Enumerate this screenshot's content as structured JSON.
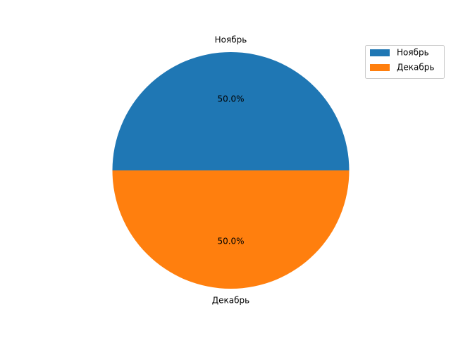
{
  "chart_data": {
    "type": "pie",
    "categories": [
      "Ноябрь",
      "Декабрь"
    ],
    "values": [
      50,
      50
    ],
    "percent_labels": [
      "50.0%",
      "50.0%"
    ],
    "colors": [
      "#1f77b4",
      "#ff7f0e"
    ],
    "start_angle_deg": 0,
    "direction": "counterclockwise",
    "legend": {
      "position": "top-right",
      "entries": [
        "Ноябрь",
        "Декабрь"
      ]
    },
    "title": "",
    "xlabel": "",
    "ylabel": ""
  }
}
